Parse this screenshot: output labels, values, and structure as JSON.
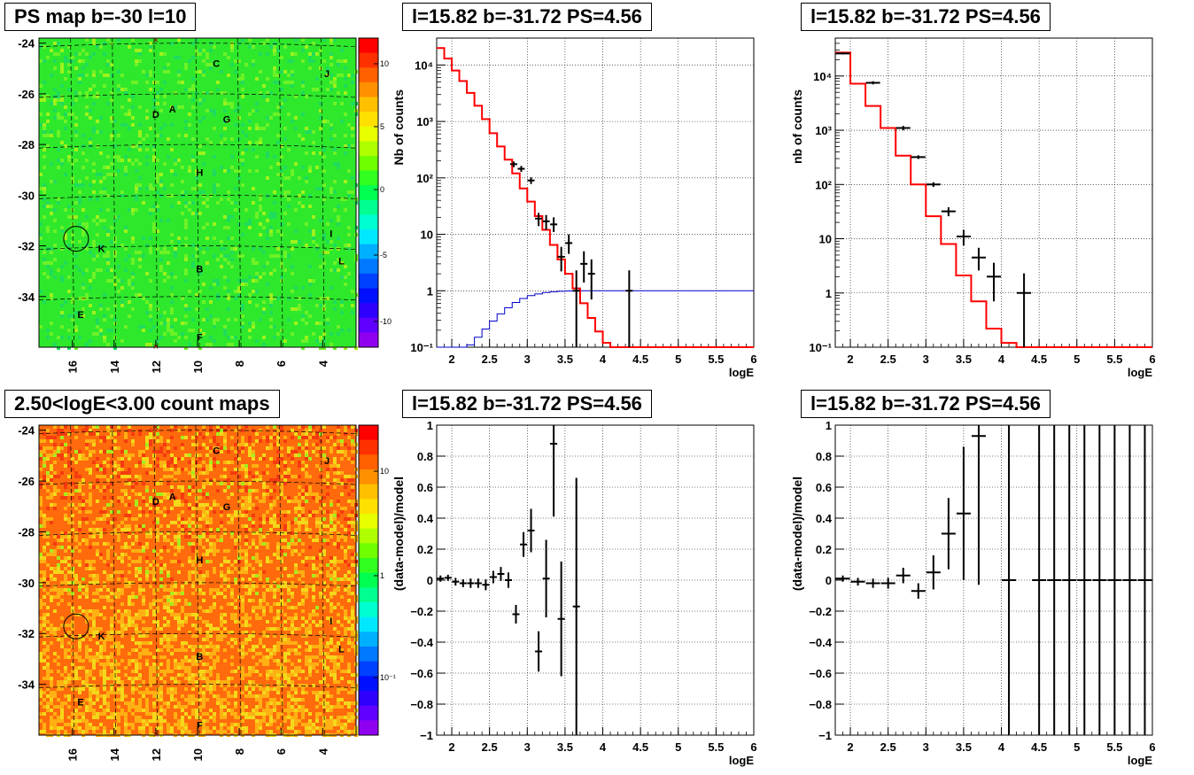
{
  "titles": {
    "ps_map": "PS map b=-30 l=10",
    "count_map": "2.50<logE<3.00 count maps",
    "spec1": "l=15.82 b=-31.72 PS=4.56",
    "spec2": "l=15.82 b=-31.72 PS=4.56",
    "resid1": "l=15.82 b=-31.72 PS=4.56",
    "resid2": "l=15.82 b=-31.72 PS=4.56"
  },
  "colors": {
    "data": "#000000",
    "model": "#ff0000",
    "exposure": "#0000cc",
    "grid": "#000000"
  },
  "map_common": {
    "y_ticks": [
      "-24",
      "-26",
      "-28",
      "-30",
      "-32",
      "-34"
    ],
    "x_ticks": [
      "16",
      "14",
      "12",
      "10",
      "8",
      "6",
      "4"
    ],
    "sources": [
      {
        "label": "C",
        "l": 9.1,
        "b": -24.8
      },
      {
        "label": "J",
        "l": 3.8,
        "b": -25.2
      },
      {
        "label": "A",
        "l": 11.2,
        "b": -26.6
      },
      {
        "label": "D",
        "l": 12.0,
        "b": -26.8
      },
      {
        "label": "G",
        "l": 8.6,
        "b": -27.0
      },
      {
        "label": "H",
        "l": 9.9,
        "b": -29.1
      },
      {
        "label": "I",
        "l": 3.6,
        "b": -31.5
      },
      {
        "label": "K",
        "l": 14.6,
        "b": -32.1
      },
      {
        "label": "L",
        "l": 3.1,
        "b": -32.6
      },
      {
        "label": "B",
        "l": 9.9,
        "b": -32.9
      },
      {
        "label": "E",
        "l": 15.6,
        "b": -34.7
      },
      {
        "label": "F",
        "l": 9.9,
        "b": -35.6
      }
    ],
    "roi": {
      "l": 15.82,
      "b": -31.72
    }
  },
  "ps_map": {
    "colorbar_ticks": [
      "10",
      "5",
      "0",
      "-5",
      "-10"
    ]
  },
  "count_map": {
    "colorbar_ticks": [
      "10",
      "1",
      "10⁻¹"
    ]
  },
  "axis_labels": {
    "spec1_y": "Nb of counts",
    "spec2_y": "nb of counts",
    "resid_y": "(data-model)/model",
    "x": "logE"
  },
  "chart_data": [
    {
      "id": "spec1",
      "type": "line",
      "xlabel": "logE",
      "ylabel": "Nb of counts",
      "xlim": [
        1.8,
        6.0
      ],
      "ylim": [
        0.1,
        30000
      ],
      "yscale": "log",
      "grid": true,
      "x_ticks": [
        "2",
        "2.5",
        "3",
        "3.5",
        "4",
        "4.5",
        "5",
        "5.5",
        "6"
      ],
      "y_ticks": [
        "10⁻¹",
        "1",
        "10",
        "10²",
        "10³",
        "10⁴"
      ],
      "model_edges": [
        1.8,
        1.9,
        2.0,
        2.1,
        2.2,
        2.3,
        2.4,
        2.5,
        2.6,
        2.7,
        2.8,
        2.9,
        3.0,
        3.1,
        3.2,
        3.3,
        3.4,
        3.5,
        3.6,
        3.7,
        3.8,
        3.9,
        4.0,
        4.1,
        4.2,
        4.3,
        4.4,
        6.0
      ],
      "model_values": [
        20000,
        13000,
        8000,
        5200,
        3200,
        1900,
        1100,
        620,
        360,
        210,
        120,
        65,
        38,
        21,
        12,
        6.5,
        3.6,
        2.0,
        1.1,
        0.6,
        0.33,
        0.19,
        0.12,
        0.1,
        0.1,
        0.1,
        0.1
      ],
      "exposure_edges": [
        1.8,
        2.1,
        2.2,
        2.3,
        2.4,
        2.5,
        2.6,
        2.7,
        2.8,
        2.9,
        3.0,
        3.1,
        3.2,
        3.3,
        3.4,
        3.5,
        3.6,
        3.7,
        3.8,
        6.0
      ],
      "exposure_values": [
        0.1,
        0.1,
        0.11,
        0.15,
        0.21,
        0.29,
        0.39,
        0.5,
        0.62,
        0.73,
        0.82,
        0.88,
        0.93,
        0.96,
        0.98,
        0.99,
        1.0,
        1.0,
        1.0
      ],
      "points": [
        {
          "x": 2.82,
          "y": 175,
          "lo": 155,
          "hi": 195
        },
        {
          "x": 2.92,
          "y": 145,
          "lo": 128,
          "hi": 163
        },
        {
          "x": 3.05,
          "y": 90,
          "lo": 78,
          "hi": 102
        },
        {
          "x": 3.15,
          "y": 19,
          "lo": 14,
          "hi": 24
        },
        {
          "x": 3.25,
          "y": 17,
          "lo": 12,
          "hi": 22
        },
        {
          "x": 3.35,
          "y": 15,
          "lo": 11,
          "hi": 20
        },
        {
          "x": 3.45,
          "y": 4,
          "lo": 2.2,
          "hi": 6
        },
        {
          "x": 3.55,
          "y": 7,
          "lo": 4.5,
          "hi": 10
        },
        {
          "x": 3.65,
          "y": 1,
          "lo": 0.1,
          "hi": 2.3
        },
        {
          "x": 3.75,
          "y": 3,
          "lo": 1.4,
          "hi": 5
        },
        {
          "x": 3.85,
          "y": 2,
          "lo": 0.7,
          "hi": 3.6
        },
        {
          "x": 4.35,
          "y": 1,
          "lo": 0.1,
          "hi": 2.3
        }
      ]
    },
    {
      "id": "spec2",
      "type": "line",
      "xlabel": "logE",
      "ylabel": "nb of counts",
      "xlim": [
        1.8,
        6.0
      ],
      "ylim": [
        0.1,
        50000
      ],
      "yscale": "log",
      "grid": true,
      "x_ticks": [
        "2",
        "2.5",
        "3",
        "3.5",
        "4",
        "4.5",
        "5",
        "5.5",
        "6"
      ],
      "y_ticks": [
        "10⁻¹",
        "1",
        "10",
        "10²",
        "10³",
        "10⁴"
      ],
      "model_edges": [
        1.8,
        2.0,
        2.2,
        2.4,
        2.6,
        2.8,
        3.0,
        3.2,
        3.4,
        3.6,
        3.8,
        4.0,
        4.2,
        4.4,
        6.0
      ],
      "model_values": [
        27000,
        7200,
        2800,
        1100,
        340,
        100,
        26,
        8,
        2.1,
        0.7,
        0.22,
        0.12,
        0.1,
        0.1
      ],
      "points": [
        {
          "x": 1.9,
          "y": 26000,
          "lo": 25000,
          "hi": 27000
        },
        {
          "x": 2.3,
          "y": 7500,
          "lo": 7000,
          "hi": 8000
        },
        {
          "x": 2.7,
          "y": 1100,
          "lo": 1000,
          "hi": 1200
        },
        {
          "x": 2.9,
          "y": 320,
          "lo": 295,
          "hi": 345
        },
        {
          "x": 3.1,
          "y": 100,
          "lo": 90,
          "hi": 110
        },
        {
          "x": 3.3,
          "y": 32,
          "lo": 26,
          "hi": 38
        },
        {
          "x": 3.5,
          "y": 11,
          "lo": 7.5,
          "hi": 14.5
        },
        {
          "x": 3.7,
          "y": 4.5,
          "lo": 2.6,
          "hi": 6.8
        },
        {
          "x": 3.9,
          "y": 2,
          "lo": 0.7,
          "hi": 3.6
        },
        {
          "x": 4.3,
          "y": 1,
          "lo": 0.1,
          "hi": 2.3
        }
      ]
    },
    {
      "id": "resid1",
      "type": "scatter",
      "xlabel": "logE",
      "ylabel": "(data-model)/model",
      "xlim": [
        1.8,
        6.0
      ],
      "ylim": [
        -1,
        1
      ],
      "grid": true,
      "x_ticks": [
        "2",
        "2.5",
        "3",
        "3.5",
        "4",
        "4.5",
        "5",
        "5.5",
        "6"
      ],
      "y_ticks": [
        "−1",
        "−0.8",
        "−0.6",
        "−0.4",
        "−0.2",
        "0",
        "0.2",
        "0.4",
        "0.6",
        "0.8",
        "1"
      ],
      "points": [
        {
          "x": 1.85,
          "y": 0.01,
          "e": 0.02
        },
        {
          "x": 1.95,
          "y": 0.015,
          "e": 0.02
        },
        {
          "x": 2.05,
          "y": -0.01,
          "e": 0.025
        },
        {
          "x": 2.15,
          "y": -0.02,
          "e": 0.025
        },
        {
          "x": 2.25,
          "y": -0.02,
          "e": 0.03
        },
        {
          "x": 2.35,
          "y": -0.02,
          "e": 0.03
        },
        {
          "x": 2.45,
          "y": -0.03,
          "e": 0.035
        },
        {
          "x": 2.55,
          "y": 0.02,
          "e": 0.04
        },
        {
          "x": 2.65,
          "y": 0.04,
          "e": 0.045
        },
        {
          "x": 2.75,
          "y": 0.0,
          "e": 0.05
        },
        {
          "x": 2.85,
          "y": -0.22,
          "e": 0.06
        },
        {
          "x": 2.95,
          "y": 0.23,
          "e": 0.08
        },
        {
          "x": 3.05,
          "y": 0.32,
          "e": 0.14
        },
        {
          "x": 3.15,
          "y": -0.46,
          "e": 0.13
        },
        {
          "x": 3.25,
          "y": 0.01,
          "e": 0.25
        },
        {
          "x": 3.35,
          "y": 0.88,
          "e": 0.47
        },
        {
          "x": 3.45,
          "y": -0.25,
          "e": 0.37
        },
        {
          "x": 3.65,
          "y": -0.17,
          "e": 0.83
        }
      ]
    },
    {
      "id": "resid2",
      "type": "scatter",
      "xlabel": "logE",
      "ylabel": "(data-model)/model",
      "xlim": [
        1.8,
        6.0
      ],
      "ylim": [
        -1,
        1
      ],
      "grid": true,
      "x_ticks": [
        "2",
        "2.5",
        "3",
        "3.5",
        "4",
        "4.5",
        "5",
        "5.5",
        "6"
      ],
      "y_ticks": [
        "−1",
        "−0.8",
        "−0.6",
        "−0.4",
        "−0.2",
        "0",
        "0.2",
        "0.4",
        "0.6",
        "0.8",
        "1"
      ],
      "points": [
        {
          "x": 1.9,
          "y": 0.01,
          "e": 0.02
        },
        {
          "x": 2.1,
          "y": -0.01,
          "e": 0.025
        },
        {
          "x": 2.3,
          "y": -0.02,
          "e": 0.03
        },
        {
          "x": 2.5,
          "y": -0.02,
          "e": 0.035
        },
        {
          "x": 2.7,
          "y": 0.03,
          "e": 0.05
        },
        {
          "x": 2.9,
          "y": -0.07,
          "e": 0.05
        },
        {
          "x": 3.1,
          "y": 0.05,
          "e": 0.11
        },
        {
          "x": 3.3,
          "y": 0.3,
          "e": 0.23
        },
        {
          "x": 3.5,
          "y": 0.43,
          "e": 0.43
        },
        {
          "x": 3.7,
          "y": 0.93,
          "e": 0.96
        },
        {
          "x": 4.1,
          "y": 0,
          "e": 1.2
        },
        {
          "x": 4.5,
          "y": 0,
          "e": 1.2
        },
        {
          "x": 4.7,
          "y": 0,
          "e": 1.2
        },
        {
          "x": 4.9,
          "y": 0,
          "e": 1.2
        },
        {
          "x": 5.1,
          "y": 0,
          "e": 1.2
        },
        {
          "x": 5.3,
          "y": 0,
          "e": 1.2
        },
        {
          "x": 5.5,
          "y": 0,
          "e": 1.2
        },
        {
          "x": 5.7,
          "y": 0,
          "e": 1.2
        },
        {
          "x": 5.9,
          "y": 0,
          "e": 1.2
        }
      ]
    }
  ]
}
